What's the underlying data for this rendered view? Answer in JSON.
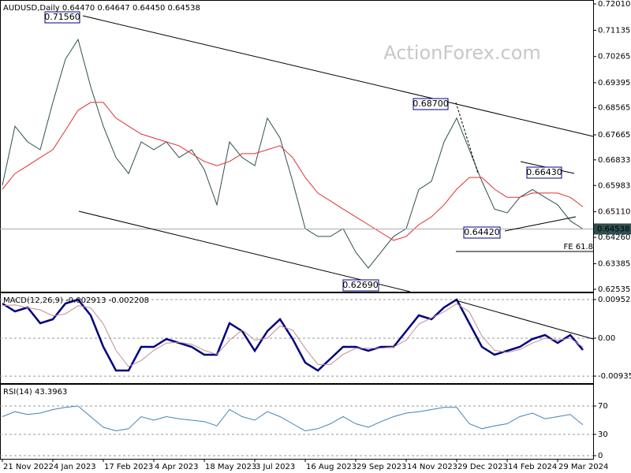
{
  "chart_data": [
    {
      "type": "line",
      "title": "AUDUSD,Daily 0.64470 0.64647 0.64450 0.64538",
      "watermark": "ActionForex.com",
      "ylim": [
        0.62535,
        0.7201
      ],
      "yticks": [
        {
          "value": 0.7201,
          "label": "0.72010"
        },
        {
          "value": 0.71135,
          "label": "0.71135"
        },
        {
          "value": 0.70265,
          "label": "0.70265"
        },
        {
          "value": 0.69395,
          "label": "0.69395"
        },
        {
          "value": 0.68565,
          "label": "0.68565"
        },
        {
          "value": 0.67665,
          "label": "0.67665"
        },
        {
          "value": 0.66833,
          "label": "0.66833"
        },
        {
          "value": 0.65983,
          "label": "0.65983"
        },
        {
          "value": 0.6511,
          "label": "0.65110"
        },
        {
          "value": 0.6426,
          "label": "0.64260"
        },
        {
          "value": 0.63385,
          "label": "0.63385"
        },
        {
          "value": 0.62535,
          "label": "0.62535"
        }
      ],
      "last": 0.64538,
      "grid": false,
      "annotations": [
        "0.71560",
        "0.68700",
        "0.66430",
        "0.64420",
        "0.62690",
        "FE 61.8"
      ],
      "series": [
        {
          "color": "#2f4f4f",
          "values": [
            0.6599,
            0.6795,
            0.6743,
            0.6717,
            0.6874,
            0.7018,
            0.7083,
            0.6926,
            0.6795,
            0.6691,
            0.6638,
            0.6743,
            0.6717,
            0.6743,
            0.6691,
            0.6717,
            0.6651,
            0.6534,
            0.6743,
            0.6691,
            0.6664,
            0.6822,
            0.6756,
            0.6612,
            0.6455,
            0.6429,
            0.6429,
            0.6455,
            0.6377,
            0.6324,
            0.6377,
            0.6429,
            0.6455,
            0.6585,
            0.6612,
            0.6743,
            0.6822,
            0.6717,
            0.6612,
            0.652,
            0.6507,
            0.6559,
            0.6585,
            0.6559,
            0.6534,
            0.6481,
            0.64538
          ]
        },
        {
          "color": "#e03030",
          "values": [
            0.6586,
            0.6638,
            0.6664,
            0.6691,
            0.6717,
            0.6782,
            0.6848,
            0.6874,
            0.6874,
            0.6822,
            0.6795,
            0.6769,
            0.6756,
            0.6743,
            0.673,
            0.6704,
            0.6678,
            0.6664,
            0.6678,
            0.6704,
            0.6704,
            0.6717,
            0.673,
            0.6691,
            0.6625,
            0.6573,
            0.6547,
            0.652,
            0.6494,
            0.6468,
            0.6442,
            0.6416,
            0.6429,
            0.6468,
            0.6494,
            0.6534,
            0.6586,
            0.6625,
            0.6625,
            0.6586,
            0.6559,
            0.6559,
            0.6573,
            0.6573,
            0.6573,
            0.6559,
            0.6528
          ]
        }
      ]
    },
    {
      "type": "line",
      "title": "MACD(12,26,9) -0.002913 -0.002208",
      "ylim": [
        -0.01089,
        0.01127
      ],
      "yticks": [
        0.009524,
        {
          "value": 0,
          "label": "0.00"
        },
        -0.00935
      ],
      "grid": true,
      "series": [
        {
          "color": "#000080",
          "values": [
            0.00855,
            0.00661,
            0.00758,
            0.00369,
            0.00467,
            0.00855,
            0.00953,
            0.00564,
            -0.00214,
            -0.00797,
            -0.00797,
            -0.00214,
            -0.00214,
            -0.00019,
            -0.00117,
            -0.00214,
            -0.00408,
            -0.00408,
            0.00369,
            0.00175,
            -0.00311,
            0.00175,
            0.00467,
            -0.00019,
            -0.00603,
            -0.00797,
            -0.00505,
            -0.00214,
            -0.00214,
            -0.00311,
            -0.00214,
            -0.00214,
            0.00175,
            0.00564,
            0.00467,
            0.00758,
            0.00953,
            0.00369,
            -0.00214,
            -0.00408,
            -0.00311,
            -0.00214,
            -0.00019,
            0.00078,
            -0.00117,
            0.00078,
            -0.00291
          ]
        },
        {
          "color": "#c09090",
          "values": [
            0.008,
            0.0082,
            0.0075,
            0.007,
            0.0055,
            0.006,
            0.008,
            0.0075,
            0.0035,
            -0.003,
            -0.007,
            -0.0055,
            -0.003,
            -0.0012,
            -0.001,
            -0.0015,
            -0.003,
            -0.004,
            -0.0005,
            0.002,
            -0.0005,
            0,
            0.003,
            0.002,
            -0.0025,
            -0.0065,
            -0.0065,
            -0.004,
            -0.0025,
            -0.0025,
            -0.0025,
            -0.0022,
            -0.0005,
            0.0035,
            0.005,
            0.0065,
            0.0085,
            0.0065,
            0.0005,
            -0.003,
            -0.0035,
            -0.0028,
            -0.0012,
            0,
            -0.0005,
            0,
            -0.00221
          ]
        }
      ]
    },
    {
      "type": "line",
      "title": "RSI(14) 43.3963",
      "ylim": [
        0,
        100
      ],
      "yticks": [
        70,
        30,
        0
      ],
      "grid": true,
      "categories": [
        "21 Nov 2022",
        null,
        null,
        null,
        "4 Jan 2023",
        null,
        null,
        null,
        "17 Feb 2023",
        null,
        null,
        null,
        "4 Apr 2023",
        null,
        null,
        null,
        "18 May 2023",
        null,
        null,
        null,
        "3 Jul 2023",
        null,
        null,
        null,
        "16 Aug 2023",
        null,
        null,
        null,
        "29 Sep 2023",
        null,
        null,
        null,
        "14 Nov 2023",
        null,
        null,
        null,
        "29 Dec 2023",
        null,
        null,
        null,
        "14 Feb 2024",
        null,
        null,
        null,
        "29 Mar 2024",
        null,
        null
      ],
      "series": [
        {
          "color": "#4682b4",
          "values": [
            55,
            62,
            58,
            60,
            65,
            68,
            70,
            55,
            40,
            35,
            38,
            55,
            50,
            55,
            52,
            50,
            48,
            42,
            65,
            55,
            50,
            62,
            55,
            45,
            35,
            38,
            45,
            55,
            45,
            40,
            48,
            55,
            60,
            62,
            65,
            68,
            68,
            45,
            38,
            42,
            45,
            55,
            60,
            52,
            55,
            58,
            43.3963
          ]
        }
      ]
    }
  ]
}
